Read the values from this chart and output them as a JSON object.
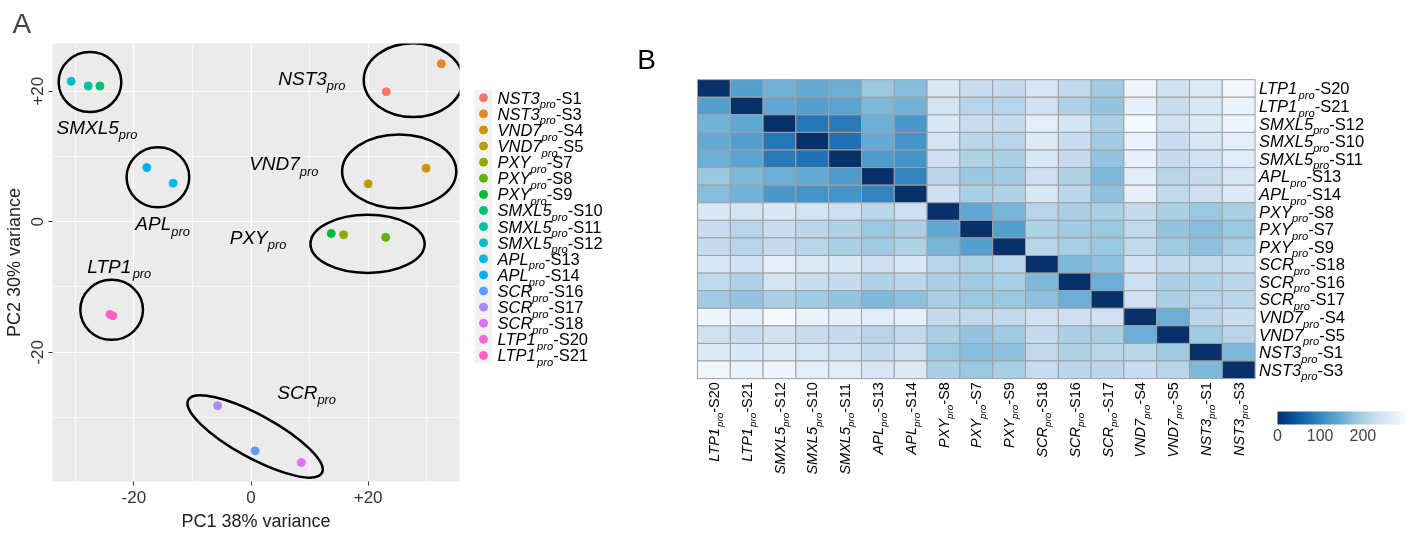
{
  "chart_data": [
    {
      "type": "scatter",
      "title": "A",
      "xlabel": "PC1 38% variance",
      "ylabel": "PC2 30% variance",
      "xlim": [
        -33.9,
        35.6
      ],
      "ylim": [
        -39.8,
        27.3
      ],
      "xticks": [
        -20,
        0,
        {
          "value": 20,
          "label": "+20"
        }
      ],
      "yticks": [
        -20,
        0,
        {
          "value": 20,
          "label": "+20"
        }
      ],
      "grid": true,
      "legend": "right",
      "marker": "circle",
      "series": [
        {
          "name": "NST3$_{pro}$-S1",
          "color": "#f8766d",
          "x": [
            23.1
          ],
          "values": [
            19.9
          ]
        },
        {
          "name": "NST3$_{pro}$-S3",
          "color": "#e88526",
          "x": [
            32.5
          ],
          "values": [
            24.2
          ]
        },
        {
          "name": "VND7$_{pro}$-S4",
          "color": "#d39200",
          "x": [
            29.9
          ],
          "values": [
            8.2
          ]
        },
        {
          "name": "VND7$_{pro}$-S5",
          "color": "#b79f00",
          "x": [
            20.0
          ],
          "values": [
            5.8
          ]
        },
        {
          "name": "PXY$_{pro}$-S7",
          "color": "#93aa00",
          "x": [
            15.8
          ],
          "values": [
            -2.0
          ]
        },
        {
          "name": "PXY$_{pro}$-S8",
          "color": "#5eb300",
          "x": [
            23.0
          ],
          "values": [
            -2.4
          ]
        },
        {
          "name": "PXY$_{pro}$-S9",
          "color": "#00ba38",
          "x": [
            13.7
          ],
          "values": [
            -1.8
          ]
        },
        {
          "name": "SMXL5$_{pro}$-S10",
          "color": "#00bf74",
          "x": [
            -25.8
          ],
          "values": [
            20.8
          ]
        },
        {
          "name": "SMXL5$_{pro}$-S11",
          "color": "#00c19f",
          "x": [
            -27.8
          ],
          "values": [
            20.8
          ]
        },
        {
          "name": "SMXL5$_{pro}$-S12",
          "color": "#00bfc4",
          "x": [
            -30.7
          ],
          "values": [
            21.5
          ]
        },
        {
          "name": "APL$_{pro}$-S13",
          "color": "#00b9e3",
          "x": [
            -13.3
          ],
          "values": [
            5.9
          ]
        },
        {
          "name": "APL$_{pro}$-S14",
          "color": "#00adfa",
          "x": [
            -17.8
          ],
          "values": [
            8.3
          ]
        },
        {
          "name": "SCR$_{pro}$-S16",
          "color": "#619cff",
          "x": [
            0.7
          ],
          "values": [
            -35.1
          ]
        },
        {
          "name": "SCR$_{pro}$-S17",
          "color": "#ae87ff",
          "x": [
            -5.7
          ],
          "values": [
            -28.2
          ]
        },
        {
          "name": "SCR$_{pro}$-S18",
          "color": "#db72fb",
          "x": [
            8.6
          ],
          "values": [
            -36.9
          ]
        },
        {
          "name": "LTP1$_{pro}$-S20",
          "color": "#f564e3",
          "x": [
            -24.1
          ],
          "values": [
            -14.2
          ]
        },
        {
          "name": "LTP1$_{pro}$-S21",
          "color": "#ff61c3",
          "x": [
            -23.6
          ],
          "values": [
            -14.4
          ]
        }
      ],
      "annotations": [
        "NST3$_{pro}$",
        "VND7$_{pro}$",
        "PXY$_{pro}$",
        "SMXL5$_{pro}$",
        "APL$_{pro}$",
        "LTP1$_{pro}$",
        "SCR$_{pro}$"
      ]
    },
    {
      "type": "heatmap",
      "title": "B",
      "categories": [
        "LTP1$_{pro}$-S20",
        "LTP1$_{pro}$-S21",
        "SMXL5$_{pro}$-S12",
        "SMXL5$_{pro}$-S10",
        "SMXL5$_{pro}$-S11",
        "APL$_{pro}$-S13",
        "APL$_{pro}$-S14",
        "PXY$_{pro}$-S8",
        "PXY$_{pro}$-S7",
        "PXY$_{pro}$-S9",
        "SCR$_{pro}$-S18",
        "SCR$_{pro}$-S16",
        "SCR$_{pro}$-S17",
        "VND7$_{pro}$-S4",
        "VND7$_{pro}$-S5",
        "NST3$_{pro}$-S1",
        "NST3$_{pro}$-S3"
      ],
      "y_categories": [
        "LTP1$_{pro}$-S20",
        "LTP1$_{pro}$-S21",
        "SMXL5$_{pro}$-S12",
        "SMXL5$_{pro}$-S10",
        "SMXL5$_{pro}$-S11",
        "APL$_{pro}$-S13",
        "APL$_{pro}$-S14",
        "PXY$_{pro}$-S8",
        "PXY$_{pro}$-S7",
        "PXY$_{pro}$-S9",
        "SCR$_{pro}$-S18",
        "SCR$_{pro}$-S16",
        "SCR$_{pro}$-S17",
        "VND7$_{pro}$-S4",
        "VND7$_{pro}$-S5",
        "NST3$_{pro}$-S1",
        "NST3$_{pro}$-S3"
      ],
      "cells": [
        [
          0,
          130,
          155,
          145,
          150,
          185,
          170,
          255,
          230,
          225,
          250,
          220,
          190,
          285,
          240,
          260,
          290
        ],
        [
          130,
          0,
          140,
          130,
          135,
          165,
          155,
          245,
          210,
          210,
          240,
          205,
          180,
          275,
          230,
          255,
          280
        ],
        [
          155,
          140,
          0,
          80,
          85,
          150,
          120,
          255,
          230,
          225,
          270,
          245,
          200,
          295,
          240,
          260,
          285
        ],
        [
          145,
          130,
          80,
          0,
          75,
          145,
          115,
          245,
          215,
          210,
          260,
          230,
          190,
          280,
          230,
          250,
          270
        ],
        [
          150,
          135,
          85,
          75,
          0,
          125,
          115,
          235,
          205,
          200,
          255,
          225,
          180,
          275,
          225,
          240,
          265
        ],
        [
          185,
          165,
          150,
          145,
          125,
          0,
          95,
          215,
          185,
          190,
          235,
          205,
          165,
          265,
          210,
          225,
          250
        ],
        [
          170,
          155,
          120,
          115,
          115,
          95,
          0,
          235,
          200,
          205,
          255,
          215,
          175,
          275,
          220,
          235,
          260
        ],
        [
          255,
          245,
          255,
          245,
          235,
          215,
          235,
          0,
          140,
          160,
          210,
          200,
          200,
          225,
          200,
          185,
          200
        ],
        [
          230,
          210,
          230,
          215,
          205,
          185,
          200,
          140,
          0,
          130,
          205,
          190,
          185,
          220,
          180,
          170,
          185
        ],
        [
          225,
          210,
          225,
          210,
          200,
          190,
          205,
          160,
          130,
          0,
          210,
          195,
          185,
          220,
          190,
          175,
          195
        ],
        [
          250,
          240,
          270,
          260,
          255,
          235,
          255,
          210,
          205,
          210,
          0,
          165,
          175,
          240,
          225,
          220,
          230
        ],
        [
          220,
          205,
          245,
          230,
          225,
          205,
          215,
          200,
          190,
          195,
          165,
          0,
          150,
          235,
          200,
          205,
          215
        ],
        [
          190,
          180,
          200,
          190,
          180,
          165,
          175,
          200,
          185,
          185,
          175,
          150,
          0,
          240,
          200,
          210,
          215
        ],
        [
          285,
          275,
          295,
          280,
          275,
          265,
          275,
          225,
          220,
          220,
          240,
          235,
          240,
          0,
          150,
          215,
          230
        ],
        [
          240,
          230,
          240,
          230,
          225,
          210,
          220,
          200,
          180,
          190,
          225,
          200,
          200,
          150,
          0,
          190,
          210
        ],
        [
          260,
          255,
          260,
          250,
          240,
          225,
          235,
          185,
          170,
          175,
          220,
          205,
          210,
          215,
          190,
          0,
          165
        ],
        [
          290,
          280,
          285,
          270,
          265,
          250,
          260,
          200,
          185,
          195,
          230,
          215,
          215,
          230,
          210,
          165,
          0
        ]
      ],
      "clim": [
        0,
        300
      ],
      "cticks": [
        0,
        100,
        200
      ]
    }
  ]
}
